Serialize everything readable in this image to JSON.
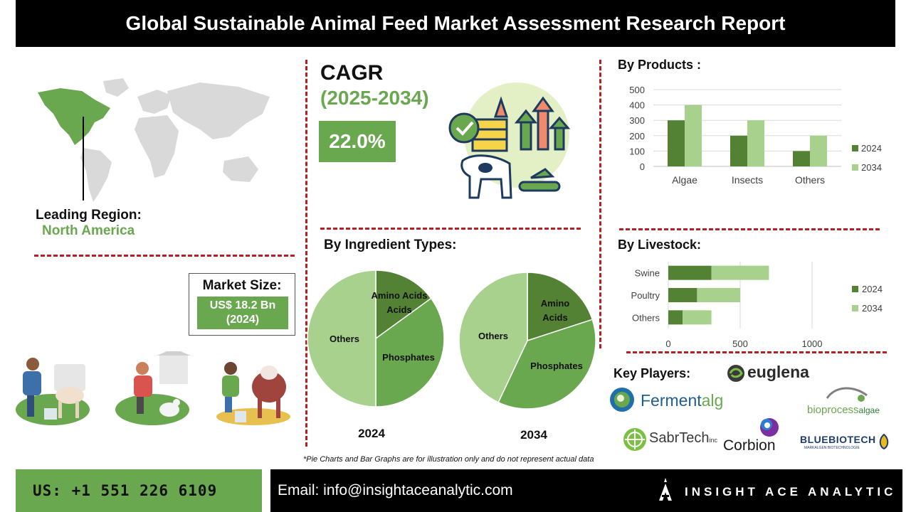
{
  "title": "Global Sustainable Animal Feed Market Assessment Research Report",
  "cagr": {
    "label": "CAGR",
    "years": "(2025-2034)",
    "value": "22.0%"
  },
  "leading_region": {
    "label": "Leading Region:",
    "value": "North America"
  },
  "market_size": {
    "label": "Market Size:",
    "value": "US$ 18.2 Bn",
    "year": "(2024)"
  },
  "sections": {
    "ingredient": "By Ingredient Types:",
    "products": "By Products :",
    "livestock": "By Livestock:",
    "key_players": "Key Players:"
  },
  "key_players": {
    "euglena": "euglena",
    "fermentalg_a": "Ferment",
    "fermentalg_b": "alg",
    "bioprocess_a": "bioprocess",
    "bioprocess_b": "algae",
    "sabrtech": "SabrTech",
    "sabrtech_suffix": "inc",
    "corbion": "Corbion",
    "bluebiotech": "BLUEBIOTECH",
    "bluebiotech_sub": "MARKALGEN BIOTECHNOLOGIE"
  },
  "note": "*Pie Charts and Bar Graphs are for illustration only and do not represent actual data",
  "footer": {
    "phone": "US: +1 551 226 6109",
    "email": "Email: info@insightaceanalytic.com",
    "brand": "INSIGHT ACE ANALYTIC"
  },
  "colors": {
    "accent": "#6aa84f",
    "light": "#a9d18e",
    "dark": "#548235",
    "divider": "#b52025"
  },
  "chart_data": [
    {
      "type": "bar",
      "title": "By Products :",
      "categories": [
        "Algae",
        "Insects",
        "Others"
      ],
      "series": [
        {
          "name": "2024",
          "values": [
            300,
            200,
            100
          ]
        },
        {
          "name": "2034",
          "values": [
            400,
            300,
            200
          ]
        }
      ],
      "ylim": [
        0,
        500
      ],
      "yticks": [
        "0",
        "100",
        "200",
        "300",
        "400",
        "500"
      ],
      "grid": true,
      "legend": "right"
    },
    {
      "type": "bar",
      "orientation": "horizontal-stacked",
      "title": "By Livestock:",
      "categories": [
        "Swine",
        "Poultry",
        "Others"
      ],
      "series": [
        {
          "name": "2024",
          "values": [
            300,
            200,
            100
          ]
        },
        {
          "name": "2034",
          "values": [
            400,
            300,
            200
          ]
        }
      ],
      "xlim": [
        0,
        1000
      ],
      "xticks": [
        "0",
        "500",
        "1000"
      ],
      "legend": "right"
    },
    {
      "type": "pie",
      "title": "2024",
      "labels": [
        "Amino Acids",
        "Phosphates",
        "Others"
      ],
      "values": [
        15,
        35,
        50
      ]
    },
    {
      "type": "pie",
      "title": "2034",
      "labels": [
        "Amino Acids",
        "Phosphates",
        "Others"
      ],
      "values": [
        20,
        37,
        43
      ]
    }
  ]
}
